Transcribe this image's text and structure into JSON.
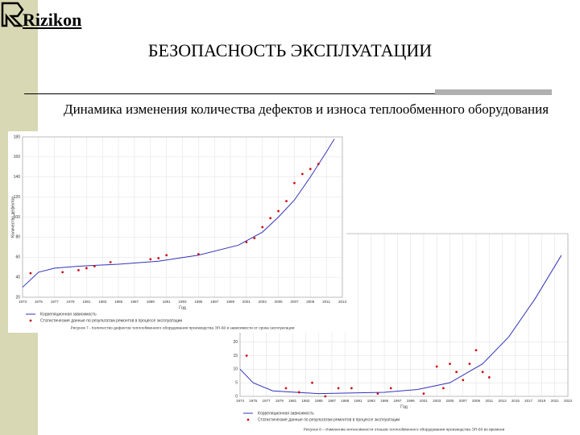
{
  "slide": {
    "logo": "Rizikon",
    "title": "БЕЗОПАСНОСТЬ ЭКСПЛУАТАЦИИ",
    "subtitle": "Динамика изменения количества дефектов и износа теплообменного оборудования"
  },
  "chart_data": [
    {
      "type": "line",
      "y_label": "Количество дефектов",
      "x_label": "Год",
      "caption": "Рисунок 7 - Количество дефектов теплообменного оборудования производства ЭП-60 в зависимости от срока эксплуатации",
      "xlim": [
        1973,
        2013
      ],
      "ylim": [
        20,
        180
      ],
      "xticks": [
        1973,
        1975,
        1977,
        1979,
        1981,
        1983,
        1985,
        1987,
        1989,
        1991,
        1993,
        1995,
        1997,
        1999,
        2001,
        2003,
        2005,
        2007,
        2009,
        2011,
        2013
      ],
      "yticks": [
        20,
        40,
        60,
        80,
        100,
        120,
        140,
        160,
        180
      ],
      "grid": true,
      "series": [
        {
          "name": "Корреляционная зависимость",
          "color": "#3333bb",
          "mode": "line",
          "x": [
            1973,
            1975,
            1977,
            1980,
            1985,
            1990,
            1995,
            2000,
            2003,
            2005,
            2007,
            2009,
            2011,
            2012
          ],
          "values": [
            30,
            45,
            49,
            51,
            53,
            56,
            62,
            72,
            85,
            100,
            117,
            140,
            165,
            178
          ]
        },
        {
          "name": "Статистические данные по результатам ремонтов в процессе эксплуатации",
          "color": "#cc1111",
          "mode": "markers",
          "x": [
            1974,
            1978,
            1980,
            1981,
            1982,
            1984,
            1989,
            1990,
            1991,
            1995,
            2001,
            2002,
            2003,
            2004,
            2005,
            2006,
            2007,
            2008,
            2009,
            2010
          ],
          "values": [
            44,
            45,
            47,
            49,
            51,
            55,
            58,
            59,
            62,
            63,
            75,
            79,
            90,
            99,
            106,
            116,
            134,
            143,
            148,
            153
          ]
        }
      ]
    },
    {
      "type": "line",
      "x_label": "Год",
      "caption": "Рисунок 8 – Изменение интенсивности отказов теплообменного оборудования производства ЭП-60 во времени",
      "xlim": [
        1973,
        2023
      ],
      "ylim": [
        0,
        60
      ],
      "xticks": [
        1973,
        1975,
        1977,
        1979,
        1981,
        1983,
        1985,
        1987,
        1989,
        1991,
        1993,
        1995,
        1997,
        1999,
        2001,
        2003,
        2005,
        2007,
        2009,
        2011,
        2013,
        2015,
        2017,
        2019,
        2021,
        2023
      ],
      "yticks": [
        0,
        5,
        10,
        15,
        20
      ],
      "grid": true,
      "series": [
        {
          "name": "Корреляционная зависимость",
          "color": "#3333bb",
          "mode": "line",
          "x": [
            1973,
            1975,
            1978,
            1985,
            1995,
            2000,
            2005,
            2010,
            2014,
            2018,
            2022
          ],
          "values": [
            10,
            5,
            2,
            1,
            1.5,
            2.5,
            5,
            12,
            22,
            36,
            52
          ]
        },
        {
          "name": "Статистические данные по результатам ремонтов в процессе эксплуатации",
          "color": "#cc1111",
          "mode": "markers",
          "x": [
            1974,
            1980,
            1982,
            1984,
            1986,
            1988,
            1990,
            1994,
            1996,
            2001,
            2003,
            2004,
            2005,
            2006,
            2007,
            2008,
            2009,
            2010,
            2011
          ],
          "values": [
            15,
            3,
            1.5,
            5,
            0,
            3,
            3,
            1,
            3,
            1,
            11,
            3,
            12,
            9,
            6,
            12,
            17,
            9,
            7
          ]
        }
      ]
    }
  ]
}
